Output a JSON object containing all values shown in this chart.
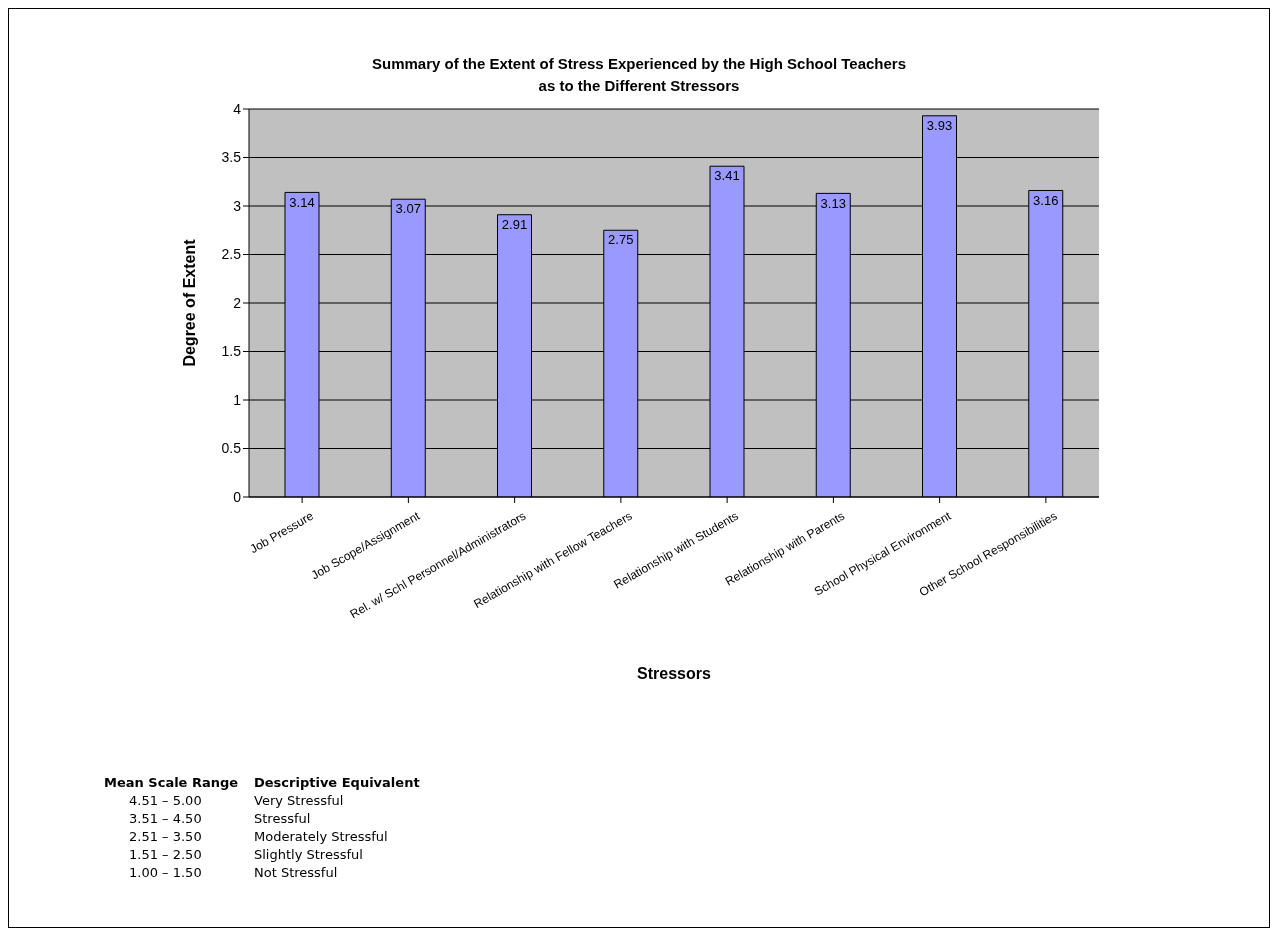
{
  "chart_data": {
    "type": "bar",
    "title": "Summary of the Extent of Stress Experienced by the High School Teachers\nas to the Different Stressors",
    "xlabel": "Stressors",
    "ylabel": "Degree of Extent",
    "categories": [
      "Job Pressure",
      "Job Scope/Assignment",
      "Rel. w/ Schl Personnel/Administrators",
      "Relationship with Fellow Teachers",
      "Relationship with Students",
      "Relationship with Parents",
      "School Physical Environment",
      "Other School Responsibilities"
    ],
    "values": [
      3.14,
      3.07,
      2.91,
      2.75,
      3.41,
      3.13,
      3.93,
      3.16
    ],
    "color": "#9999ff",
    "ylim": [
      0,
      4
    ],
    "yticks": [
      0,
      0.5,
      1,
      1.5,
      2,
      2.5,
      3,
      3.5,
      4
    ],
    "grid": "y",
    "data_labels": true,
    "annotations": [
      "Mean Scale Range",
      "Descriptive Equivalent",
      "4.51 – 5.00",
      "Very Stressful",
      "3.51 – 4.50",
      "Stressful",
      "2.51 – 3.50",
      "Moderately Stressful",
      "1.51 – 2.50",
      "Slightly Stressful",
      "1.00 – 1.50",
      "Not Stressful"
    ]
  }
}
